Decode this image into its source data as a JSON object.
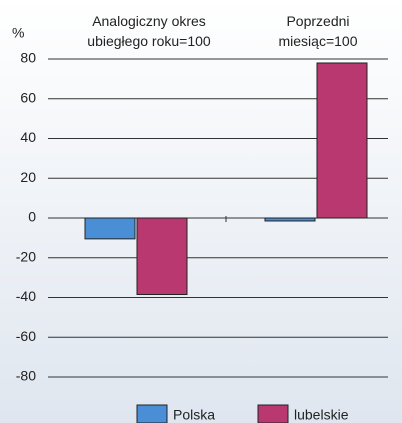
{
  "chart_data": {
    "type": "bar",
    "ylabel": "%",
    "categories": [
      "Analogiczny okres\nubiegłego roku=100",
      "Poprzedni\nmiesiąc=100"
    ],
    "series": [
      {
        "name": "Polska",
        "color": "#4a8fd6",
        "values": [
          -10.5,
          -1.5
        ]
      },
      {
        "name": "lubelskie",
        "color": "#b8386f",
        "values": [
          -38.5,
          78
        ]
      }
    ],
    "ylim": [
      -80,
      80
    ],
    "yticks": [
      -80,
      -60,
      -40,
      -20,
      0,
      20,
      40,
      60,
      80
    ],
    "grid": true,
    "legend": "bottom"
  }
}
